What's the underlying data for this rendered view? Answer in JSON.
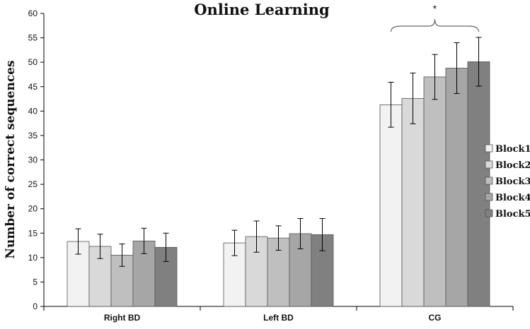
{
  "chart_data": {
    "type": "bar",
    "title": "Online Learning",
    "ylabel": "Number of correct sequences",
    "xlabel": "",
    "ylim": [
      0,
      60
    ],
    "yticks": [
      0,
      5,
      10,
      15,
      20,
      25,
      30,
      35,
      40,
      45,
      50,
      55,
      60
    ],
    "categories": [
      "Right BD",
      "Left BD",
      "CG"
    ],
    "series": [
      {
        "name": "Block1",
        "color": "#f2f2f2",
        "values": [
          13.3,
          13.0,
          41.3
        ],
        "errors": [
          2.6,
          2.6,
          4.6
        ]
      },
      {
        "name": "Block2",
        "color": "#d9d9d9",
        "values": [
          12.3,
          14.3,
          42.6
        ],
        "errors": [
          2.5,
          3.2,
          5.2
        ]
      },
      {
        "name": "Block3",
        "color": "#bfbfbf",
        "values": [
          10.5,
          14.0,
          47.0
        ],
        "errors": [
          2.3,
          2.5,
          4.6
        ]
      },
      {
        "name": "Block4",
        "color": "#a6a6a6",
        "values": [
          13.4,
          14.9,
          48.8
        ],
        "errors": [
          2.6,
          3.1,
          5.2
        ]
      },
      {
        "name": "Block5",
        "color": "#808080",
        "values": [
          12.1,
          14.7,
          50.1
        ],
        "errors": [
          2.9,
          3.3,
          5.0
        ]
      }
    ],
    "annotations": [
      {
        "text": "*",
        "category": "CG"
      }
    ],
    "legend_position": "right",
    "grid": false
  }
}
